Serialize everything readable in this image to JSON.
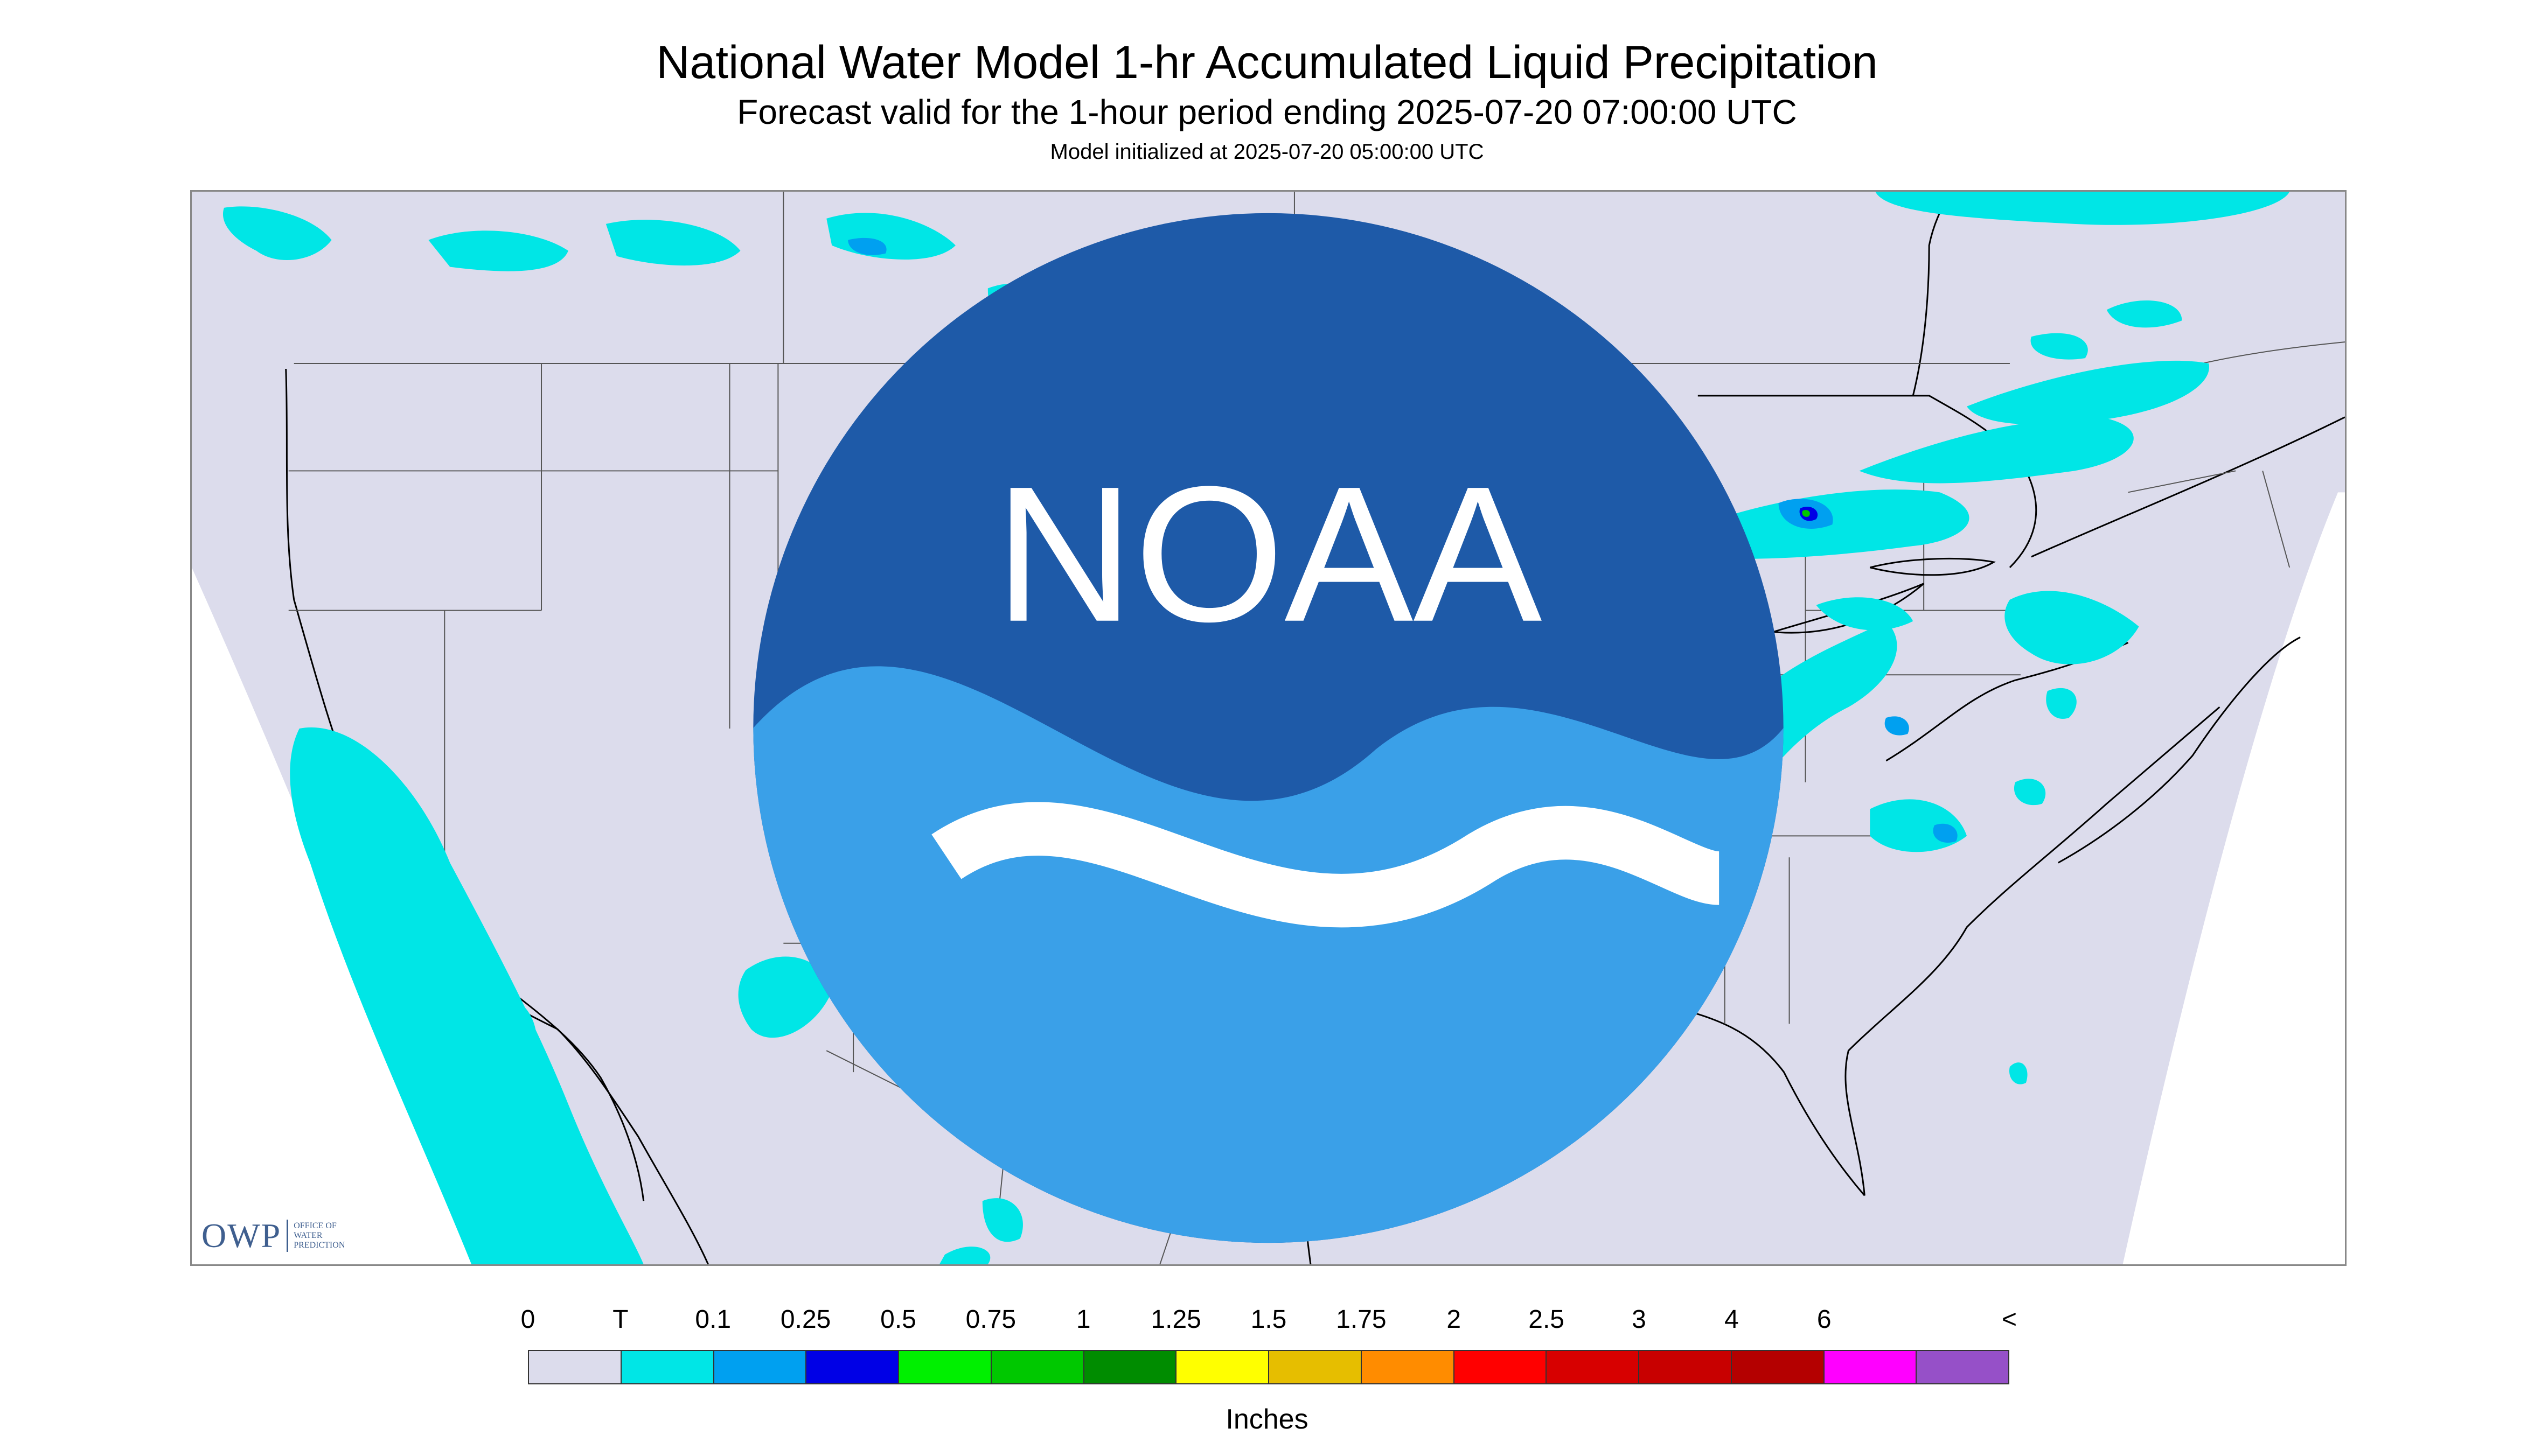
{
  "header": {
    "title": "National Water Model 1-hr Accumulated Liquid Precipitation",
    "subtitle": "Forecast valid for the 1-hour period ending 2025-07-20 07:00:00 UTC",
    "init": "Model initialized at 2025-07-20 05:00:00 UTC"
  },
  "logos": {
    "owp_mark": "OWP",
    "owp_text_1": "OFFICE OF",
    "owp_text_2": "WATER",
    "owp_text_3": "PREDICTION",
    "noaa_text": "NOAA"
  },
  "map": {
    "background_color": "#dcdcec",
    "outside_color": "#ffffff",
    "border_color": "#000000"
  },
  "legend": {
    "labels": [
      "0",
      "T",
      "0.1",
      "0.25",
      "0.5",
      "0.75",
      "1",
      "1.25",
      "1.5",
      "1.75",
      "2",
      "2.5",
      "3",
      "4",
      "6",
      "<"
    ],
    "colors": [
      "#dcdcec",
      "#00e6e6",
      "#00a0f0",
      "#0000e6",
      "#00f000",
      "#00c800",
      "#008c00",
      "#ffff00",
      "#e6be00",
      "#ff8c00",
      "#ff0000",
      "#d70000",
      "#c80000",
      "#b40000",
      "#ff00ff",
      "#9650c8"
    ],
    "units": "Inches"
  }
}
